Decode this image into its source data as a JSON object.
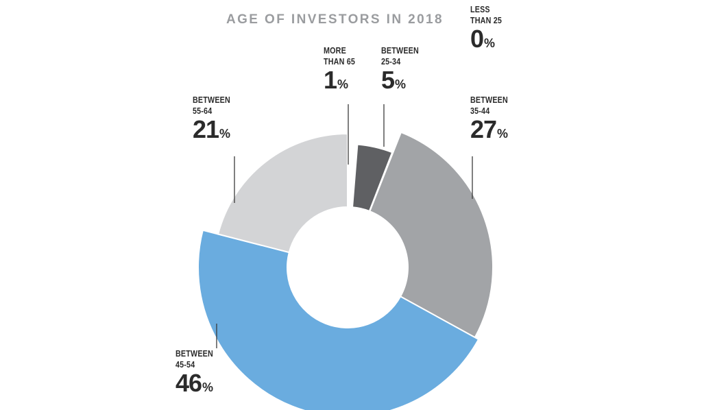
{
  "chart_data": {
    "type": "pie",
    "style": "donut with varying slice radii",
    "title": "AGE OF INVESTORS IN 2018",
    "unit": "%",
    "slices": [
      {
        "key": "lt25",
        "label_lines": [
          "LESS",
          "THAN 25"
        ],
        "value": 0,
        "color": "#6b6d70"
      },
      {
        "key": "b25_34",
        "label_lines": [
          "BETWEEN",
          "25-34"
        ],
        "value": 5,
        "color": "#5f6063"
      },
      {
        "key": "b35_44",
        "label_lines": [
          "BETWEEN",
          "35-44"
        ],
        "value": 27,
        "color": "#a2a4a7"
      },
      {
        "key": "b45_54",
        "label_lines": [
          "BETWEEN",
          "45-54"
        ],
        "value": 46,
        "color": "#6aacdf"
      },
      {
        "key": "b55_64",
        "label_lines": [
          "BETWEEN",
          "55-64"
        ],
        "value": 21,
        "color": "#d3d4d6"
      },
      {
        "key": "gt65",
        "label_lines": [
          "MORE",
          "THAN 65"
        ],
        "value": 1,
        "color": "#3e3f41"
      }
    ]
  }
}
